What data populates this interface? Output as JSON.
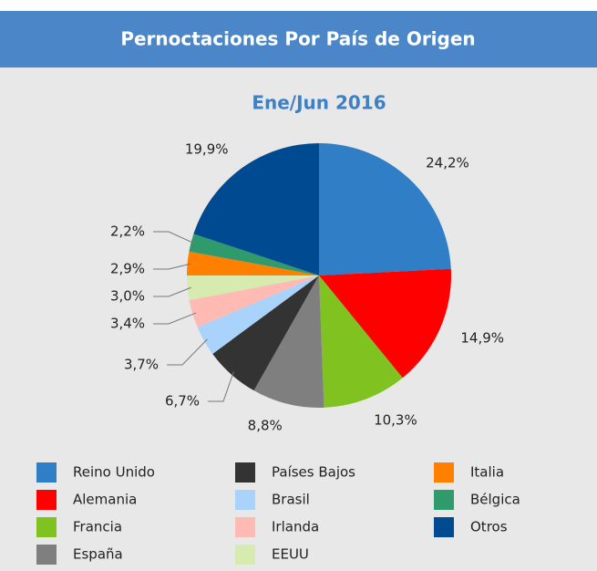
{
  "chart_data": {
    "type": "pie",
    "title": "Pernoctaciones Por País de Origen",
    "subtitle": "Ene/Jun 2016",
    "categories": [
      "Reino Unido",
      "Alemania",
      "Francia",
      "España",
      "Países Bajos",
      "Brasil",
      "Irlanda",
      "EEUU",
      "Italia",
      "Bélgica",
      "Otros"
    ],
    "values": [
      24.2,
      14.9,
      10.3,
      8.8,
      6.7,
      3.7,
      3.4,
      3.0,
      2.9,
      2.2,
      19.9
    ],
    "value_labels": [
      "24,2%",
      "14,9%",
      "10,3%",
      "8,8%",
      "6,7%",
      "3,7%",
      "3,4%",
      "3,0%",
      "2,9%",
      "2,2%",
      "19,9%"
    ],
    "colors": [
      "#2f7ec6",
      "#ff0000",
      "#80c21f",
      "#7f7f7f",
      "#333333",
      "#a9d3fb",
      "#ffbab3",
      "#d7eab0",
      "#ff8000",
      "#2f9a6b",
      "#004a91"
    ],
    "legend": "bottom"
  }
}
